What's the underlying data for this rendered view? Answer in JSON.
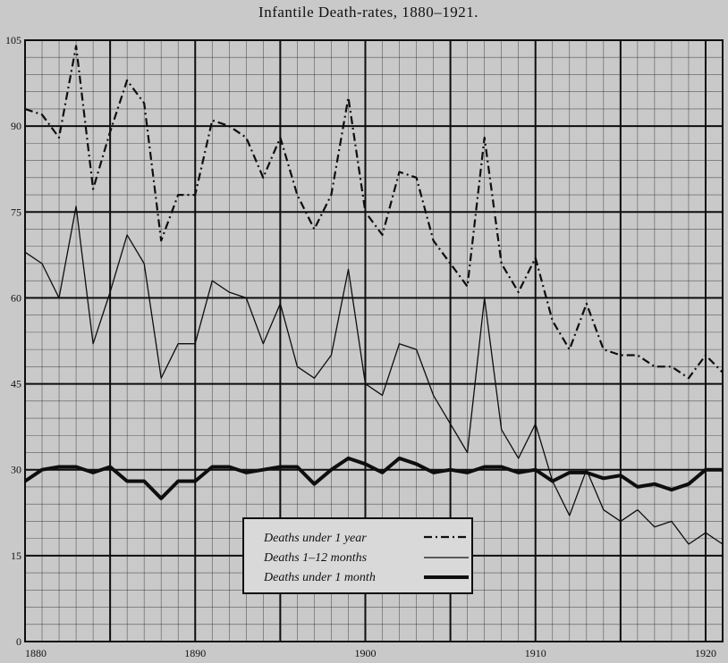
{
  "chart_data": {
    "type": "line",
    "title": "Infantile Death-rates, 1880–1921.",
    "xlabel": "",
    "ylabel": "",
    "xlim": [
      1880,
      1921
    ],
    "ylim": [
      0,
      105
    ],
    "x_ticks": [
      1880,
      1890,
      1900,
      1910,
      1920
    ],
    "y_ticks": [
      0,
      15,
      30,
      45,
      60,
      75,
      90,
      105
    ],
    "grid": true,
    "legend_position": "bottom-center",
    "x": [
      1880,
      1881,
      1882,
      1883,
      1884,
      1885,
      1886,
      1887,
      1888,
      1889,
      1890,
      1891,
      1892,
      1893,
      1894,
      1895,
      1896,
      1897,
      1898,
      1899,
      1900,
      1901,
      1902,
      1903,
      1904,
      1905,
      1906,
      1907,
      1908,
      1909,
      1910,
      1911,
      1912,
      1913,
      1914,
      1915,
      1916,
      1917,
      1918,
      1919,
      1920,
      1921
    ],
    "series": [
      {
        "name": "Deaths under 1 year",
        "style": "dash-dot",
        "values": [
          93,
          92,
          88,
          104,
          79,
          89,
          98,
          94,
          70,
          78,
          78,
          91,
          90,
          88,
          81,
          88,
          78,
          72,
          78,
          95,
          75,
          71,
          82,
          81,
          70,
          66,
          62,
          88,
          66,
          61,
          67,
          56,
          51,
          59,
          51,
          50,
          50,
          48,
          48,
          46,
          50,
          47
        ]
      },
      {
        "name": "Deaths 1–12 months",
        "style": "thin",
        "values": [
          68,
          66,
          60,
          76,
          52,
          61,
          71,
          66,
          46,
          52,
          52,
          63,
          61,
          60,
          52,
          59,
          48,
          46,
          50,
          65,
          45,
          43,
          52,
          51,
          43,
          38,
          33,
          60,
          37,
          32,
          38,
          28,
          22,
          30,
          23,
          21,
          23,
          20,
          21,
          17,
          19,
          17
        ]
      },
      {
        "name": "Deaths under 1 month",
        "style": "thick",
        "values": [
          28,
          30,
          30.5,
          30.5,
          29.5,
          30.5,
          28,
          28,
          25,
          28,
          28,
          30.5,
          30.5,
          29.5,
          30,
          30.5,
          30.5,
          27.5,
          30,
          32,
          31,
          29.5,
          32,
          31,
          29.5,
          30,
          29.5,
          30.5,
          30.5,
          29.5,
          30,
          28,
          29.5,
          29.5,
          28.5,
          29,
          27,
          27.5,
          26.5,
          27.5,
          30,
          30
        ]
      }
    ]
  },
  "colors": {
    "background": "#c9c9c9",
    "ink": "#0e0e0e",
    "legend_bg": "#d9d9d9"
  }
}
